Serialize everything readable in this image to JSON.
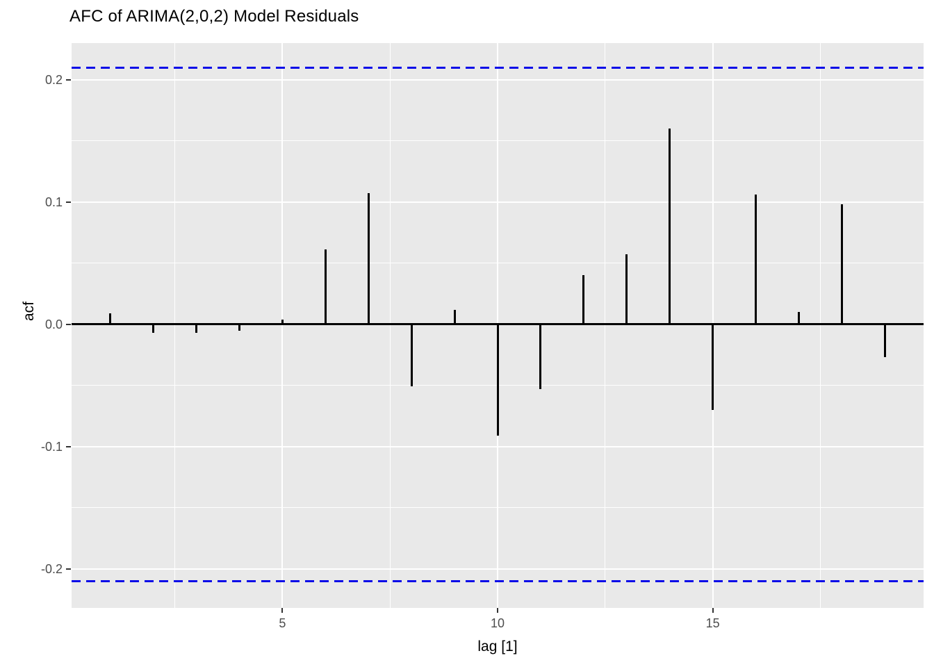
{
  "title": "AFC of ARIMA(2,0,2) Model Residuals",
  "chart_data": {
    "type": "bar",
    "variant": "acf-stick-plot",
    "title": "AFC of ARIMA(2,0,2) Model Residuals",
    "xlabel": "lag [1]",
    "ylabel": "acf",
    "x": [
      1,
      2,
      3,
      4,
      5,
      6,
      7,
      8,
      9,
      10,
      11,
      12,
      13,
      14,
      15,
      16,
      17,
      18,
      19
    ],
    "values": [
      0.009,
      -0.007,
      -0.007,
      -0.005,
      0.004,
      0.061,
      0.107,
      -0.051,
      0.012,
      -0.091,
      -0.053,
      0.04,
      0.057,
      0.16,
      -0.07,
      0.106,
      0.01,
      0.098,
      -0.027
    ],
    "confidence_bounds": {
      "upper": 0.21,
      "lower": -0.21,
      "line_style": "dashed"
    },
    "xlim": [
      0.1,
      19.9
    ],
    "ylim": [
      -0.232,
      0.23
    ],
    "x_major_ticks": [
      5,
      10,
      15
    ],
    "x_major_tick_labels": [
      "5",
      "10",
      "15"
    ],
    "x_minor_gridlines": [
      2.5,
      7.5,
      12.5,
      17.5
    ],
    "y_major_ticks": [
      0.2,
      0.1,
      0.0,
      -0.1,
      -0.2
    ],
    "y_major_tick_labels": [
      "0.2",
      "0.1",
      "0.0",
      "-0.1",
      "-0.2"
    ],
    "y_minor_gridlines": [
      0.15,
      0.05,
      -0.05,
      -0.15
    ],
    "grid": "on",
    "legend_position": "none",
    "colors": {
      "spike": "#000000",
      "zero_line": "#000000",
      "confidence_line": "#0c0ce8",
      "panel_background": "#e9e9e9",
      "gridline": "#ffffff",
      "tick_label": "#4d4d4d",
      "axis_title": "#000000",
      "plot_background": "#ffffff"
    }
  }
}
